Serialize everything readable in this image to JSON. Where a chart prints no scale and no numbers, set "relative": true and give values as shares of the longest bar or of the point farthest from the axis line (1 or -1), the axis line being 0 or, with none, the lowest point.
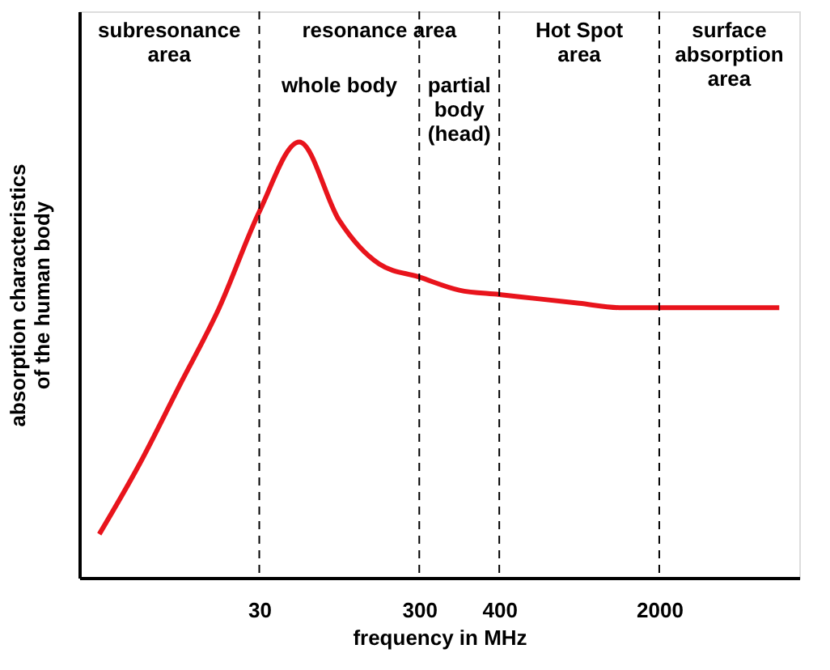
{
  "chart_data": {
    "type": "line",
    "relative": true,
    "xlabel": "frequency in MHz",
    "ylabel": "absorption characteristics\nof the human body",
    "categories": [
      null,
      null,
      null,
      null,
      "30",
      null,
      null,
      null,
      "300",
      null,
      "400",
      null,
      null,
      null,
      "2000",
      null,
      null,
      null
    ],
    "series": [
      {
        "color": "#e8141c",
        "values": [
          0.1,
          0.26,
          0.44,
          0.62,
          0.84,
          1.0,
          0.82,
          0.72,
          0.69,
          0.66,
          0.65,
          0.64,
          0.63,
          0.62,
          0.62,
          0.62,
          0.62,
          0.62
        ]
      }
    ],
    "line_style": "solid",
    "marker": "none",
    "grid": false,
    "ref_lines": [
      {
        "axis": "x",
        "value": "30",
        "line_style": "dashed"
      },
      {
        "axis": "x",
        "value": "300",
        "line_style": "dashed"
      },
      {
        "axis": "x",
        "value": "400",
        "line_style": "dashed"
      },
      {
        "axis": "x",
        "value": "2000",
        "line_style": "dashed"
      }
    ],
    "annotations": [
      "subresonance\narea",
      "resonance area",
      "whole body",
      "partial\nbody\n(head)",
      "Hot Spot\narea",
      "surface\nabsorption\narea"
    ]
  }
}
